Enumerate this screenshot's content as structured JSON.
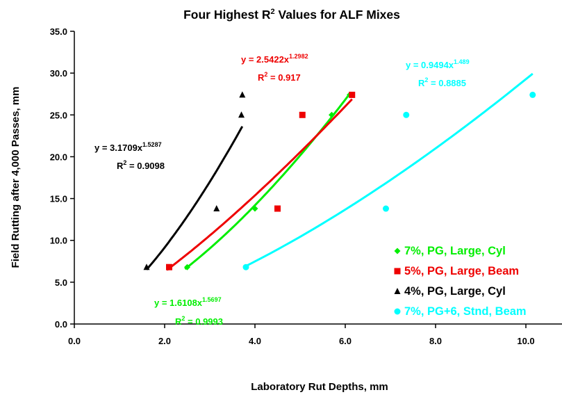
{
  "chart_data": {
    "type": "scatter",
    "title": "Four Highest R",
    "title_sup": "2",
    "title_rest": " Values for ALF Mixes",
    "xlabel": "Laboratory Rut Depths, mm",
    "ylabel": "Field Rutting after 4,000 Passes, mm",
    "xlim": [
      0,
      10.8
    ],
    "ylim": [
      0,
      35
    ],
    "xticks": [
      "0.0",
      "2.0",
      "4.0",
      "6.0",
      "8.0",
      "10.0"
    ],
    "yticks": [
      "0.0",
      "5.0",
      "10.0",
      "15.0",
      "20.0",
      "25.0",
      "30.0",
      "35.0"
    ],
    "grid": false,
    "legend_position": "bottom-right",
    "series": [
      {
        "name": "7%, PG, Large, Cyl",
        "color": "#00ee00",
        "marker": "diamond",
        "points": [
          [
            2.5,
            6.8
          ],
          [
            4.0,
            13.8
          ],
          [
            5.7,
            25.0
          ],
          [
            6.1,
            27.4
          ]
        ],
        "trend": {
          "a": 1.6108,
          "b": 1.5697,
          "x_range": [
            2.45,
            6.1
          ]
        },
        "equation": {
          "pre": "y = 1.6108x",
          "exp": "1.5697",
          "r2_pre": "R",
          "r2_sup": "2",
          "r2_post": " = 0.9993"
        }
      },
      {
        "name": "5%, PG, Large, Beam",
        "color": "#ee0000",
        "marker": "square",
        "points": [
          [
            2.1,
            6.8
          ],
          [
            4.5,
            13.8
          ],
          [
            5.05,
            25.0
          ],
          [
            6.15,
            27.4
          ]
        ],
        "trend": {
          "a": 2.5422,
          "b": 1.2982,
          "x_range": [
            2.05,
            6.15
          ]
        },
        "equation": {
          "pre": "y = 2.5422x",
          "exp": "1.2982",
          "r2_pre": "R",
          "r2_sup": "2",
          "r2_post": " = 0.917"
        }
      },
      {
        "name": "4%, PG, Large, Cyl",
        "color": "#000000",
        "marker": "triangle",
        "points": [
          [
            1.6,
            6.8
          ],
          [
            3.15,
            13.8
          ],
          [
            3.7,
            25.0
          ],
          [
            3.72,
            27.4
          ]
        ],
        "trend": {
          "a": 3.1709,
          "b": 1.5287,
          "x_range": [
            1.6,
            3.72
          ]
        },
        "equation": {
          "pre": "y = 3.1709x",
          "exp": "1.5287",
          "r2_pre": "R",
          "r2_sup": "2",
          "r2_post": " = 0.9098"
        }
      },
      {
        "name": "7%, PG+6, Stnd, Beam",
        "color": "#00ffff",
        "marker": "circle",
        "points": [
          [
            3.8,
            6.8
          ],
          [
            6.9,
            13.8
          ],
          [
            7.35,
            25.0
          ],
          [
            10.15,
            27.4
          ]
        ],
        "trend": {
          "a": 0.9494,
          "b": 1.489,
          "x_range": [
            3.8,
            10.15
          ]
        },
        "equation": {
          "pre": "y = 0.9494x",
          "exp": "1.489",
          "r2_pre": "R",
          "r2_sup": "2",
          "r2_post": " = 0.8885"
        }
      }
    ]
  }
}
